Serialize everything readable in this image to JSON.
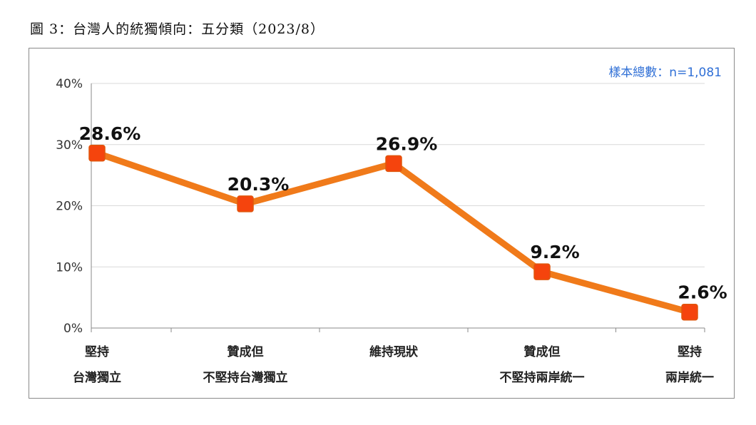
{
  "figure": {
    "title": "圖 3：台灣人的統獨傾向：五分類（2023/8）",
    "sample_note": "樣本總數：n=1,081"
  },
  "chart_data": {
    "type": "line",
    "categories": [
      [
        "堅持",
        "台灣獨立"
      ],
      [
        "贊成但",
        "不堅持台灣獨立"
      ],
      [
        "維持現狀"
      ],
      [
        "贊成但",
        "不堅持兩岸統一"
      ],
      [
        "堅持",
        "兩岸統一"
      ]
    ],
    "values": [
      28.6,
      20.3,
      26.9,
      9.2,
      2.6
    ],
    "data_labels": [
      "28.6%",
      "20.3%",
      "26.9%",
      "9.2%",
      "2.6%"
    ],
    "ylim": [
      0,
      40
    ],
    "yticks": [
      0,
      10,
      20,
      30,
      40
    ],
    "ytick_labels": [
      "0%",
      "10%",
      "20%",
      "30%",
      "40%"
    ],
    "grid": true,
    "colors": {
      "line": "#f07a1a",
      "marker": "#f5440d",
      "grid": "#d9d9d9",
      "axis": "#8a8a8a"
    }
  }
}
